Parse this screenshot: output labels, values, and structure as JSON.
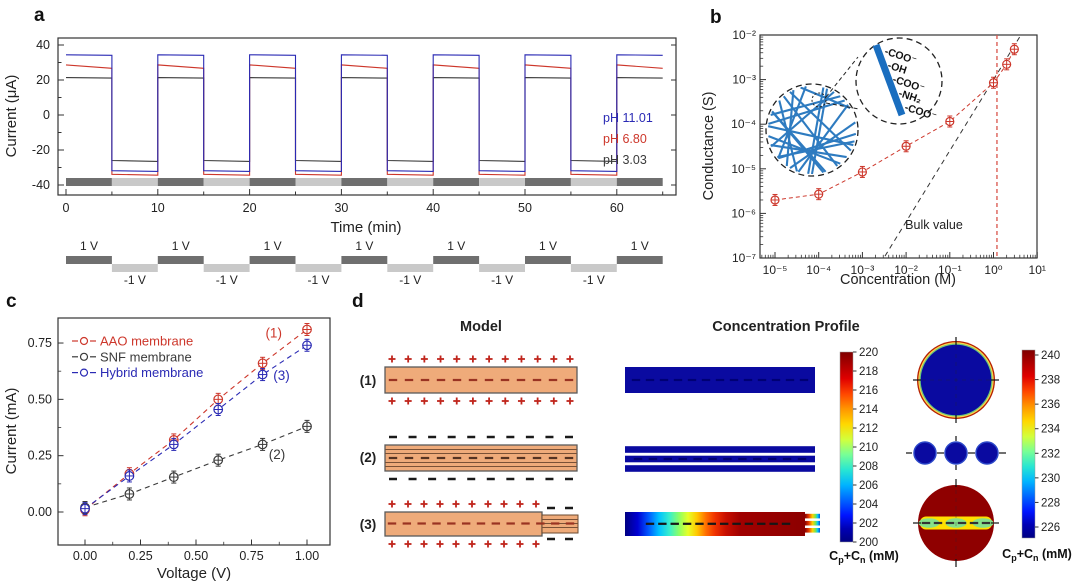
{
  "figure": {
    "panel_labels": {
      "a": "a",
      "b": "b",
      "c": "c",
      "d": "d"
    }
  },
  "chart_data": [
    {
      "panel": "a",
      "type": "line",
      "xlabel": "Time (min)",
      "ylabel": "Current (μA)",
      "xticks": [
        0,
        10,
        20,
        30,
        40,
        50,
        60
      ],
      "yticks": [
        40,
        20,
        0,
        -20,
        -40
      ],
      "xlim": [
        -1,
        66.5
      ],
      "ylim": [
        -45,
        48
      ],
      "waveform": {
        "period_min": 10,
        "positive_min": 5,
        "t_end": 65
      },
      "series": [
        {
          "name": "pH 11.01",
          "color": "#2a2ab4",
          "positive": [
            34.4,
            34.1
          ],
          "negative": [
            -31.8,
            -32.2
          ]
        },
        {
          "name": "pH 6.80",
          "color": "#cd372b",
          "positive": [
            28.6,
            26.7
          ],
          "negative": [
            -33.9,
            -34.4
          ]
        },
        {
          "name": "pH 3.03",
          "color": "#3a3a3a",
          "positive": [
            21.4,
            21.1
          ],
          "negative": [
            -26.0,
            -26.5
          ]
        }
      ],
      "state_bar": {
        "positive_color": "#6f6f6f",
        "negative_color": "#c9c9c9"
      },
      "voltage_program": {
        "positive_label": "1 V",
        "negative_label": "-1 V",
        "positive_color": "#6f6f6f",
        "negative_color": "#c9c9c9"
      }
    },
    {
      "panel": "b",
      "type": "scatter",
      "xlabel": "Concentration (M)",
      "ylabel": "Conductance (S)",
      "xscale": "log",
      "yscale": "log",
      "xtick_exponents": [
        -5,
        -4,
        -3,
        -2,
        -1,
        0,
        1
      ],
      "ytick_exponents": [
        -2,
        -3,
        -4,
        -5,
        -6,
        -7
      ],
      "points": {
        "x": [
          1e-05,
          0.0001,
          0.001,
          0.01,
          0.1,
          1,
          2,
          3
        ],
        "y": [
          2e-06,
          2.7e-06,
          8.5e-06,
          3.2e-05,
          0.000115,
          0.00085,
          0.0022,
          0.0048
        ],
        "color": "#cd372b"
      },
      "bulk_line": {
        "label": "Bulk value",
        "x": [
          0.002,
          5
        ],
        "y": [
          5e-08,
          0.013
        ],
        "color": "#333333"
      },
      "vline": {
        "x": 1.2,
        "color": "#d9534a"
      },
      "inset": {
        "functional_groups": [
          "-COO⁻",
          "-OH",
          "-COO⁻",
          "-NH₂",
          "-COO⁻"
        ],
        "fiber_color": "#2e7bc0",
        "rod_color": "#1a6ebf"
      }
    },
    {
      "panel": "c",
      "type": "scatter",
      "xlabel": "Voltage (V)",
      "ylabel": "Current (mA)",
      "x": [
        0,
        0.2,
        0.4,
        0.6,
        0.8,
        1.0
      ],
      "xticks": [
        0,
        0.25,
        0.5,
        0.75,
        1.0
      ],
      "yticks": [
        0,
        0.25,
        0.5,
        0.75
      ],
      "series": [
        {
          "name": "AAO membrane",
          "color": "#cd372b",
          "values": [
            0.01,
            0.17,
            0.32,
            0.5,
            0.66,
            0.81
          ],
          "annotation": "(1)",
          "annotation_xy": [
            0.85,
            0.775
          ]
        },
        {
          "name": "SNF membrane",
          "color": "#3a3a3a",
          "values": [
            0.02,
            0.08,
            0.155,
            0.23,
            0.3,
            0.38
          ],
          "annotation": "(2)",
          "annotation_xy": [
            0.865,
            0.235
          ]
        },
        {
          "name": "Hybrid membrane",
          "color": "#2a2ab4",
          "values": [
            0.015,
            0.16,
            0.3,
            0.455,
            0.61,
            0.74
          ],
          "annotation": "(3)",
          "annotation_xy": [
            0.885,
            0.585
          ]
        }
      ]
    },
    {
      "panel": "d",
      "type": "diagram",
      "columns": [
        "Model",
        "Concentration Profile"
      ],
      "rows": [
        "(1)",
        "(2)",
        "(3)"
      ],
      "membrane_color": "#efab7a",
      "plus_color": "#c0251c",
      "minus_color": "#1a1a1a",
      "inner_dash_color": "#993322",
      "models": [
        {
          "row": "(1)",
          "surface_charge": "+",
          "n_top": 12,
          "n_bottom": 12,
          "style": "single-channel"
        },
        {
          "row": "(2)",
          "surface_charge": "-",
          "n_top": 10,
          "n_bottom": 10,
          "style": "multilayer"
        },
        {
          "row": "(3)",
          "surface_charge": "+",
          "n_top": 10,
          "tip_charge": "-",
          "n_tip": 2,
          "style": "hybrid"
        }
      ],
      "colorbars": [
        {
          "min": 200,
          "max": 220,
          "step": 2,
          "label_parts": {
            "c1": "C",
            "s1": "p",
            "mid": "+C",
            "s2": "n",
            "unit": " (mM)"
          }
        },
        {
          "min": 226,
          "max": 240,
          "step": 2,
          "label_parts": {
            "c1": "C",
            "s1": "p",
            "mid": "+C",
            "s2": "n",
            "unit": " (mM)"
          }
        }
      ]
    }
  ]
}
